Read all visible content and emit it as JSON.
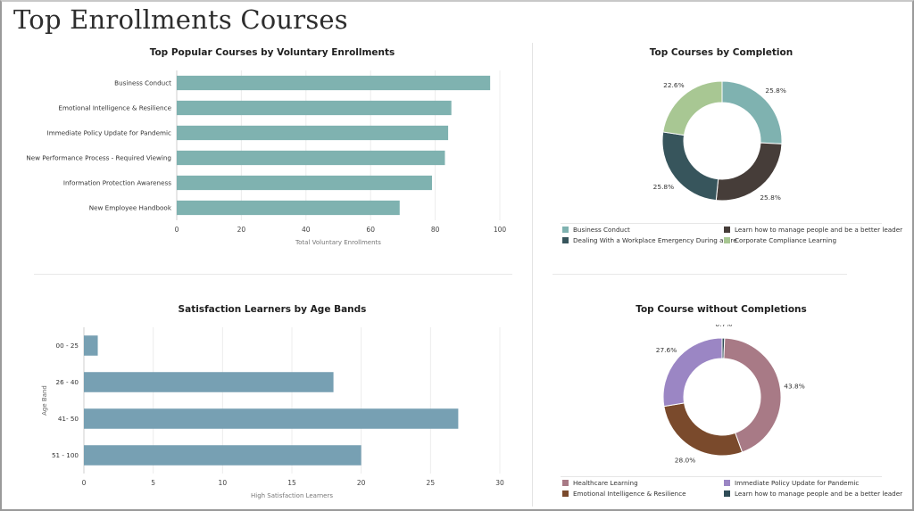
{
  "page": {
    "title": "Top Enrollments Courses"
  },
  "chart_data": [
    {
      "type": "bar",
      "orientation": "horizontal",
      "title": "Top Popular Courses by Voluntary Enrollments",
      "xlabel": "Total Voluntary Enrollments",
      "ylabel": "",
      "categories": [
        "Business Conduct",
        "Emotional Intelligence & Resilience",
        "Immediate Policy Update for Pandemic",
        "New Performance Process - Required Viewing",
        "Information Protection Awareness",
        "New Employee Handbook"
      ],
      "values": [
        97,
        85,
        84,
        83,
        79,
        69
      ],
      "xlim": [
        0,
        100
      ],
      "ticks": [
        "0",
        "20",
        "40",
        "60",
        "80",
        "100"
      ],
      "color": "#7fb2b0",
      "grid": true
    },
    {
      "type": "pie",
      "donut": true,
      "title": "Top Courses by Completion",
      "slices": [
        {
          "label": "Business Conduct",
          "value": 25.8,
          "text": "25.8%",
          "color": "#7fb2b0"
        },
        {
          "label": "Learn how to manage people and be a better leader",
          "value": 25.8,
          "text": "25.8%",
          "color": "#463d39"
        },
        {
          "label": "Dealing With a Workplace Emergency During a Fire",
          "value": 25.8,
          "text": "25.8%",
          "color": "#37555c"
        },
        {
          "label": "Corporate Compliance Learning",
          "value": 22.6,
          "text": "22.6%",
          "color": "#a8c793"
        }
      ],
      "legend_placement": "bottom"
    },
    {
      "type": "bar",
      "orientation": "horizontal",
      "title": "Satisfaction Learners by Age Bands",
      "xlabel": "High Satisfaction Learners",
      "ylabel": "Age Band",
      "categories": [
        "00 - 25",
        "26 - 40",
        "41- 50",
        "51 - 100"
      ],
      "values": [
        1,
        18,
        27,
        20
      ],
      "xlim": [
        0,
        30
      ],
      "ticks": [
        "0",
        "5",
        "10",
        "15",
        "20",
        "25",
        "30"
      ],
      "color": "#77a0b3",
      "grid": true
    },
    {
      "type": "pie",
      "donut": true,
      "title": "Top Course without Completions",
      "slices": [
        {
          "label": "Learn how to manage people and be a better leader",
          "value": 0.7,
          "text": "0.7%",
          "color": "#2f4c57"
        },
        {
          "label": "Healthcare Learning",
          "value": 43.8,
          "text": "43.8%",
          "color": "#a87a86"
        },
        {
          "label": "Emotional Intelligence & Resilience",
          "value": 28.0,
          "text": "28.0%",
          "color": "#7a4a2c"
        },
        {
          "label": "Immediate Policy Update for Pandemic",
          "value": 27.6,
          "text": "27.6%",
          "color": "#9b86c4"
        }
      ],
      "legend_order": [
        "Healthcare Learning",
        "Immediate Policy Update for Pandemic",
        "Emotional Intelligence & Resilience",
        "Learn how to manage people and be a better leader"
      ],
      "legend_placement": "bottom"
    }
  ]
}
